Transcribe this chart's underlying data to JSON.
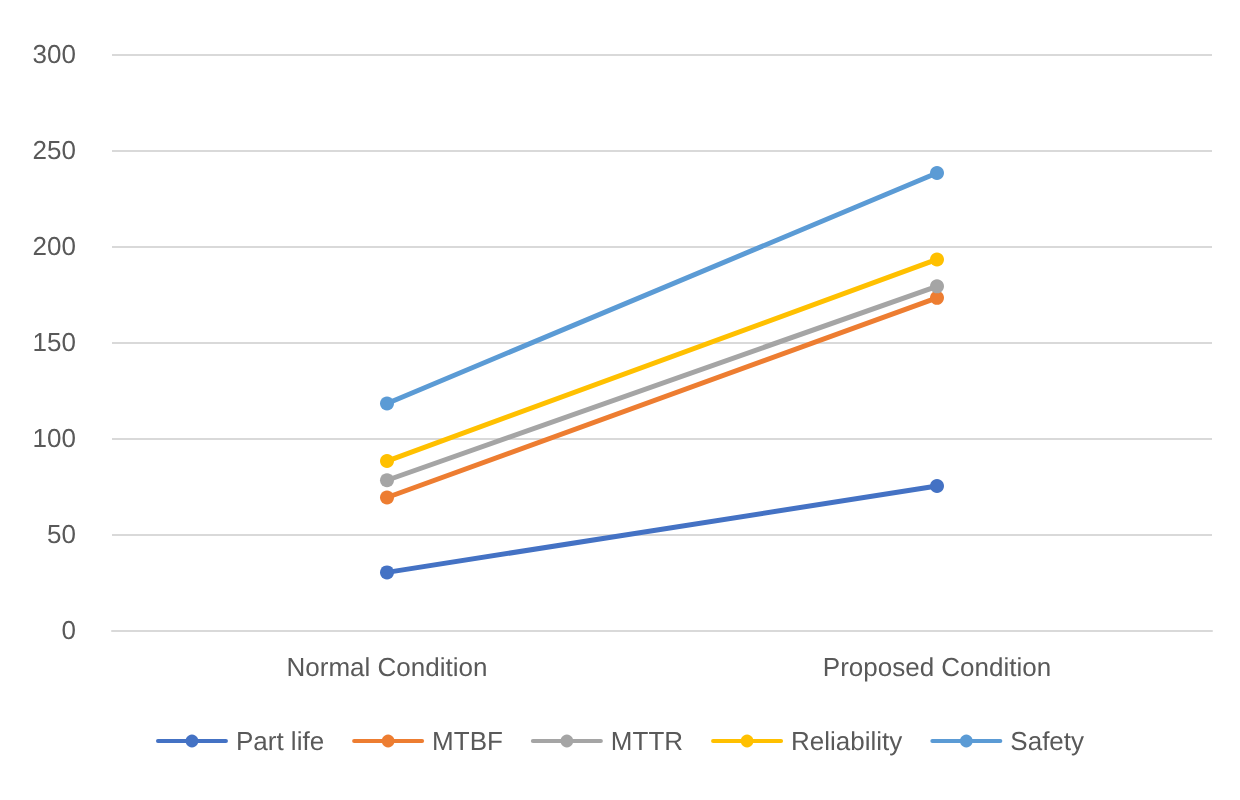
{
  "chart_data": {
    "type": "line",
    "categories": [
      "Normal Condition",
      "Proposed Condition"
    ],
    "series": [
      {
        "name": "Part life",
        "color": "#4472c4",
        "values": [
          30,
          75
        ]
      },
      {
        "name": "MTBF",
        "color": "#ed7d31",
        "values": [
          69,
          173
        ]
      },
      {
        "name": "MTTR",
        "color": "#a5a5a5",
        "values": [
          78,
          179
        ]
      },
      {
        "name": "Reliability",
        "color": "#ffc000",
        "values": [
          88,
          193
        ]
      },
      {
        "name": "Safety",
        "color": "#5b9bd5",
        "values": [
          118,
          238
        ]
      }
    ],
    "ylim": [
      0,
      300
    ],
    "yticks": [
      0,
      50,
      100,
      150,
      200,
      250,
      300
    ],
    "grid": "y",
    "legend": "bottom",
    "marker": "circle",
    "line_style": "solid"
  }
}
